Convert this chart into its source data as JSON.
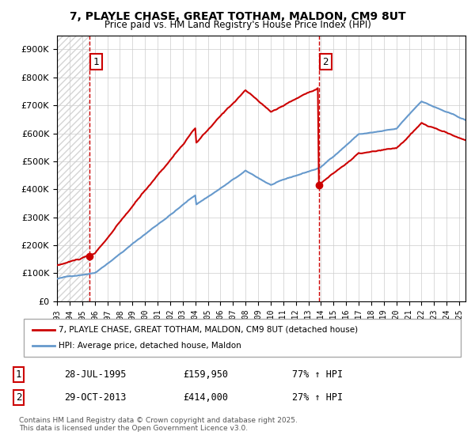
{
  "title1": "7, PLAYLE CHASE, GREAT TOTHAM, MALDON, CM9 8UT",
  "title2": "Price paid vs. HM Land Registry's House Price Index (HPI)",
  "legend_line1": "7, PLAYLE CHASE, GREAT TOTHAM, MALDON, CM9 8UT (detached house)",
  "legend_line2": "HPI: Average price, detached house, Maldon",
  "table_rows": [
    {
      "num": "1",
      "date": "28-JUL-1995",
      "price": "£159,950",
      "change": "77% ↑ HPI"
    },
    {
      "num": "2",
      "date": "29-OCT-2013",
      "price": "£414,000",
      "change": "27% ↑ HPI"
    }
  ],
  "footer": "Contains HM Land Registry data © Crown copyright and database right 2025.\nThis data is licensed under the Open Government Licence v3.0.",
  "purchase1_year": 1995.57,
  "purchase1_price": 159950,
  "purchase2_year": 2013.83,
  "purchase2_price": 414000,
  "hpi_color": "#6699cc",
  "price_color": "#cc0000",
  "vline_color": "#cc0000",
  "background_hatch_color": "#e8e8e8",
  "ylim": [
    0,
    950000
  ],
  "xlim_start": 1993,
  "xlim_end": 2025.5
}
